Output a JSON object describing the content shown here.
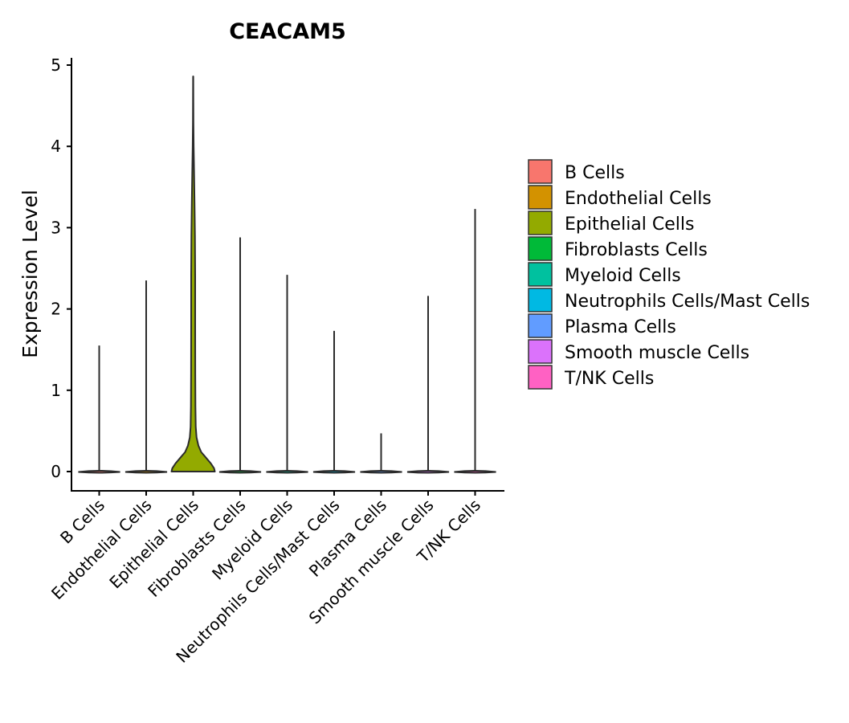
{
  "chart_data": {
    "type": "violin",
    "title": "CEACAM5",
    "xlabel": "",
    "ylabel": "Expression Level",
    "ylim": [
      -0.22,
      5.1
    ],
    "yticks": [
      "0",
      "1",
      "2",
      "3",
      "4",
      "5"
    ],
    "categories": [
      "B Cells",
      "Endothelial Cells",
      "Epithelial Cells",
      "Fibroblasts Cells",
      "Myeloid Cells",
      "Neutrophils Cells/Mast Cells",
      "Plasma Cells",
      "Smooth muscle Cells",
      "T/NK Cells"
    ],
    "max_values": [
      1.55,
      2.35,
      4.86,
      2.88,
      2.42,
      1.73,
      0.47,
      2.16,
      3.23
    ],
    "colors": [
      "#F8766D",
      "#D39200",
      "#93AA00",
      "#00BA38",
      "#00C19F",
      "#00B9E3",
      "#619CFF",
      "#DB72FB",
      "#FF61C3"
    ],
    "legend": [
      "B Cells",
      "Endothelial Cells",
      "Epithelial Cells",
      "Fibroblasts Cells",
      "Myeloid Cells",
      "Neutrophils Cells/Mast Cells",
      "Plasma Cells",
      "Smooth muscle Cells",
      "T/NK Cells"
    ],
    "legend_position": "right",
    "grid": false
  }
}
